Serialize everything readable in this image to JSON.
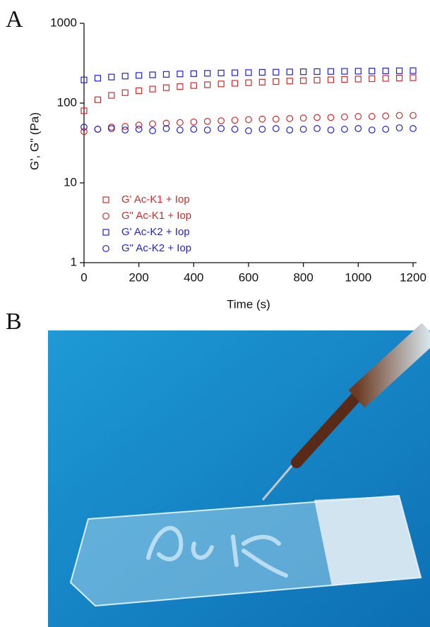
{
  "figure": {
    "panel_a": "A",
    "panel_b": "B"
  },
  "chart_data": {
    "type": "scatter",
    "x_label": "Time (s)",
    "y_label": "G', G\" (Pa)",
    "x": [
      0,
      50,
      100,
      150,
      200,
      250,
      300,
      350,
      400,
      450,
      500,
      550,
      600,
      650,
      700,
      750,
      800,
      850,
      900,
      950,
      1000,
      1050,
      1100,
      1150,
      1200
    ],
    "series": [
      {
        "name": "G' Ac-K1 + Iop",
        "color": "#d42a2a",
        "marker": "square",
        "values": [
          80,
          110,
          125,
          135,
          143,
          150,
          156,
          161,
          166,
          170,
          174,
          177,
          180,
          183,
          186,
          189,
          191,
          194,
          196,
          198,
          200,
          202,
          204,
          206,
          208
        ]
      },
      {
        "name": "G\" Ac-K1 + Iop",
        "color": "#d42a2a",
        "marker": "circle",
        "values": [
          44,
          47,
          50,
          51,
          53,
          55,
          56,
          57,
          58,
          59,
          60,
          61,
          62,
          63,
          63,
          64,
          65,
          66,
          66,
          67,
          68,
          68,
          69,
          70,
          70
        ]
      },
      {
        "name": "G' Ac-K2 + Iop",
        "color": "#1f1fe0",
        "marker": "square",
        "values": [
          195,
          205,
          212,
          218,
          222,
          226,
          229,
          232,
          234,
          236,
          238,
          240,
          241,
          243,
          244,
          246,
          247,
          248,
          249,
          250,
          251,
          252,
          253,
          254,
          255
        ]
      },
      {
        "name": "G\" Ac-K2 + Iop",
        "color": "#1f1fe0",
        "marker": "circle",
        "values": [
          50,
          47,
          48,
          46,
          47,
          45,
          48,
          46,
          47,
          46,
          48,
          47,
          45,
          47,
          48,
          46,
          47,
          48,
          46,
          47,
          48,
          46,
          47,
          49,
          48
        ]
      }
    ],
    "xlim": [
      0,
      1200
    ],
    "xticks": [
      0,
      200,
      400,
      600,
      800,
      1000,
      1200
    ],
    "ylim": [
      1,
      1000
    ],
    "yticks": [
      1,
      10,
      100,
      1000
    ],
    "y_scale": "log",
    "legend": "lower-left"
  }
}
